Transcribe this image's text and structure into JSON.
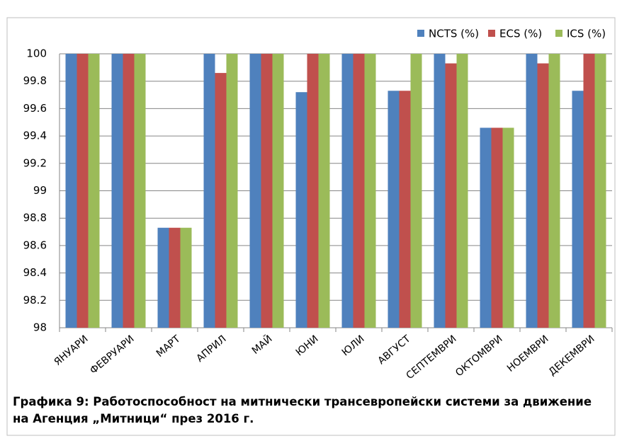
{
  "chart_data": {
    "type": "bar",
    "categories": [
      "ЯНУАРИ",
      "ФЕВРУАРИ",
      "МАРТ",
      "АПРИЛ",
      "МАЙ",
      "ЮНИ",
      "ЮЛИ",
      "АВГУСТ",
      "СЕПТЕМВРИ",
      "ОКТОМВРИ",
      "НОЕМВРИ",
      "ДЕКЕМВРИ"
    ],
    "series": [
      {
        "name": "NCTS (%)",
        "color": "#4f81bd",
        "values": [
          100,
          100,
          98.73,
          100,
          100,
          99.72,
          100,
          99.73,
          100,
          99.46,
          100,
          99.73
        ]
      },
      {
        "name": "ECS (%)",
        "color": "#c0504d",
        "values": [
          100,
          100,
          98.73,
          99.86,
          100,
          100,
          100,
          99.73,
          99.93,
          99.46,
          99.93,
          100
        ]
      },
      {
        "name": "ICS (%)",
        "color": "#9bbb59",
        "values": [
          100,
          100,
          98.73,
          100,
          100,
          100,
          100,
          100,
          100,
          99.46,
          100,
          100
        ]
      }
    ],
    "ylim": [
      98,
      100
    ],
    "yticks": [
      98,
      98.2,
      98.4,
      98.6,
      98.8,
      99,
      99.2,
      99.4,
      99.6,
      99.8,
      100
    ],
    "grid": true,
    "legend": "top-right",
    "caption": "Графика 9: Работоспособност на митнически трансевропейски системи за движение на Агенция „Митници“ през 2016 г."
  }
}
